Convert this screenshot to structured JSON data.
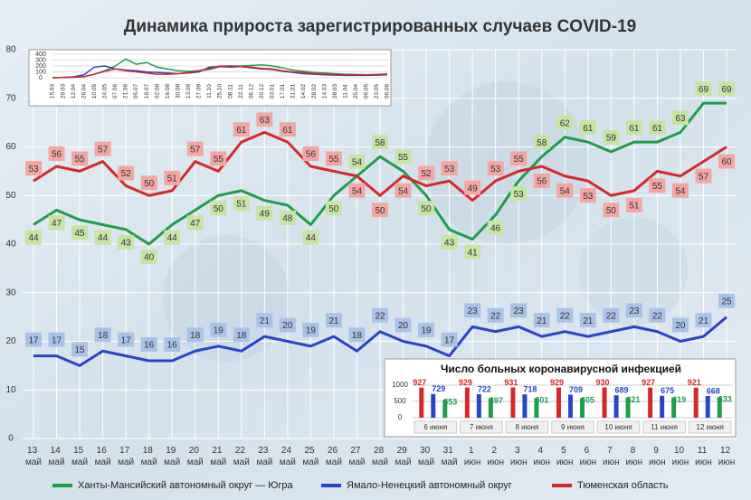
{
  "chart_data": [
    {
      "type": "line",
      "title": "Динамика прироста зарегистрированных случаев COVID-19",
      "categories": [
        "13 май",
        "14 май",
        "15 май",
        "16 май",
        "17 май",
        "18 май",
        "19 май",
        "20 май",
        "21 май",
        "22 май",
        "23 май",
        "24 май",
        "25 май",
        "26 май",
        "27 май",
        "28 май",
        "29 май",
        "30 май",
        "31 май",
        "1 июн",
        "2 июн",
        "3 июн",
        "4 июн",
        "5 июн",
        "6 июн",
        "7 июн",
        "8 июн",
        "9 июн",
        "10 июн",
        "11 июн",
        "12 июн"
      ],
      "series": [
        {
          "name": "Ханты-Мансийский автономный округ — Югра",
          "color": "#1e9e4a",
          "values": [
            44,
            47,
            45,
            44,
            43,
            40,
            44,
            47,
            50,
            51,
            49,
            48,
            44,
            50,
            54,
            58,
            55,
            50,
            43,
            41,
            46,
            53,
            58,
            62,
            61,
            59,
            61,
            61,
            63,
            69,
            69
          ]
        },
        {
          "name": "Ямало-Ненецкий автономный округ",
          "color": "#2a44c8",
          "values": [
            17,
            17,
            15,
            18,
            17,
            16,
            16,
            18,
            19,
            18,
            21,
            20,
            19,
            21,
            18,
            22,
            20,
            19,
            17,
            23,
            22,
            23,
            21,
            22,
            21,
            22,
            23,
            22,
            20,
            21,
            25
          ]
        },
        {
          "name": "Тюменская область",
          "color": "#d62828",
          "values": [
            53,
            56,
            55,
            57,
            52,
            50,
            51,
            57,
            55,
            61,
            63,
            61,
            56,
            55,
            54,
            50,
            54,
            52,
            53,
            49,
            53,
            55,
            56,
            54,
            53,
            50,
            51,
            55,
            54,
            57,
            60
          ]
        }
      ],
      "ylim": [
        0,
        80
      ],
      "yticks": [
        0,
        10,
        20,
        30,
        40,
        50,
        60,
        70,
        80
      ],
      "grid": true,
      "legend": "bottom"
    },
    {
      "type": "line",
      "categories": [
        "15.03",
        "29.03",
        "12.04",
        "26.04",
        "10.05",
        "24.05",
        "07.06",
        "21.06",
        "05.07",
        "19.07",
        "02.08",
        "16.08",
        "30.08",
        "13.09",
        "27.09",
        "11.10",
        "25.10",
        "08.11",
        "22.11",
        "06.12",
        "20.12",
        "03.01",
        "17.01",
        "31.01",
        "14.02",
        "28.02",
        "14.03",
        "28.03",
        "11.04",
        "25.04",
        "09.05",
        "23.05",
        "06.06"
      ],
      "series": [
        {
          "color": "#1e9e4a",
          "values": [
            0,
            5,
            10,
            20,
            60,
            120,
            200,
            320,
            230,
            260,
            180,
            150,
            120,
            110,
            120,
            140,
            190,
            200,
            200,
            210,
            220,
            200,
            170,
            130,
            110,
            90,
            80,
            70,
            60,
            55,
            50,
            55,
            65
          ]
        },
        {
          "color": "#2a44c8",
          "values": [
            0,
            5,
            15,
            50,
            180,
            200,
            150,
            130,
            120,
            100,
            90,
            80,
            70,
            80,
            100,
            180,
            190,
            180,
            190,
            170,
            150,
            140,
            110,
            90,
            70,
            60,
            50,
            45,
            40,
            40,
            40,
            45,
            50
          ]
        },
        {
          "color": "#d62828",
          "values": [
            0,
            5,
            10,
            20,
            60,
            110,
            150,
            120,
            100,
            80,
            60,
            60,
            70,
            90,
            120,
            160,
            200,
            200,
            190,
            180,
            160,
            150,
            120,
            100,
            90,
            70,
            60,
            55,
            50,
            50,
            50,
            55,
            60
          ]
        }
      ],
      "ylim": [
        0,
        400
      ],
      "yticks": [
        0,
        100,
        200,
        300,
        400
      ],
      "grid": true
    },
    {
      "type": "bar",
      "title": "Число больных коронавирусной инфекцией",
      "categories": [
        "6 июня",
        "7 июня",
        "8 июня",
        "9 июня",
        "10 июня",
        "11 июня",
        "12 июня"
      ],
      "series": [
        {
          "color": "#d62828",
          "values": [
            927,
            929,
            931,
            929,
            930,
            927,
            921
          ]
        },
        {
          "color": "#2a44c8",
          "values": [
            729,
            722,
            718,
            709,
            689,
            675,
            668
          ]
        },
        {
          "color": "#1e9e4a",
          "values": [
            553,
            597,
            601,
            605,
            621,
            619,
            633
          ]
        }
      ],
      "ylim": [
        0,
        1000
      ],
      "yticks": [
        0,
        500,
        1000
      ],
      "grid": true
    }
  ]
}
